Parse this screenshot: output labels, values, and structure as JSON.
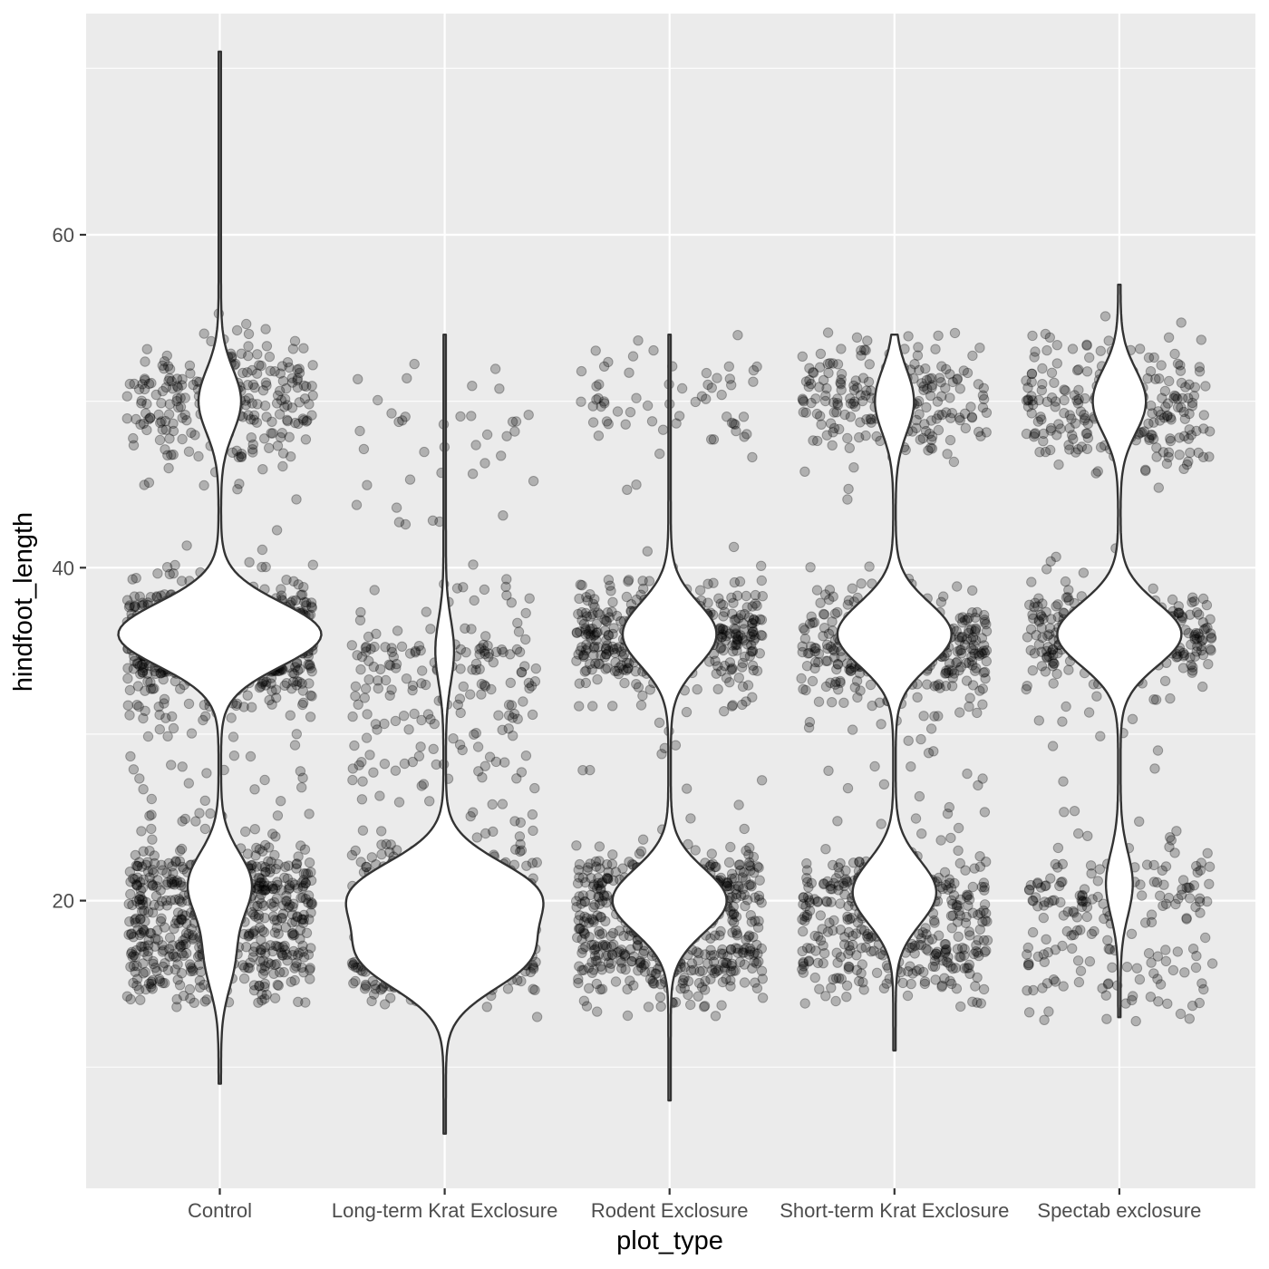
{
  "chart_data": {
    "type": "violin",
    "xlabel": "plot_type",
    "ylabel": "hindfoot_length",
    "categories": [
      "Control",
      "Long-term Krat Exclosure",
      "Rodent Exclosure",
      "Short-term Krat Exclosure",
      "Spectab exclosure"
    ],
    "ylim": [
      2,
      72
    ],
    "y_ticks": [
      20,
      40,
      60
    ],
    "y_tick_labels": [
      "20",
      "40",
      "60"
    ],
    "grid": true,
    "colors": {
      "panel": "#ebebeb",
      "grid": "#ffffff",
      "points": "#000000",
      "violin_fill": "#ffffff",
      "violin_stroke": "#333333"
    },
    "point_alpha": 0.25,
    "jitter": true,
    "violins": [
      {
        "category": "Control",
        "y_range": [
          9,
          71
        ],
        "modes": [
          {
            "y": 50,
            "density": 0.2
          },
          {
            "y": 36,
            "density": 1.0
          },
          {
            "y": 21,
            "density": 0.3
          },
          {
            "y": 16.5,
            "density": 0.13
          }
        ]
      },
      {
        "category": "Long-term Krat Exclosure",
        "y_range": [
          6,
          54
        ],
        "modes": [
          {
            "y": 35,
            "density": 0.08
          },
          {
            "y": 20.5,
            "density": 0.85
          },
          {
            "y": 16.5,
            "density": 0.75
          }
        ]
      },
      {
        "category": "Rodent Exclosure",
        "y_range": [
          8,
          54
        ],
        "modes": [
          {
            "y": 36,
            "density": 0.45
          },
          {
            "y": 20,
            "density": 0.55
          }
        ]
      },
      {
        "category": "Short-term Krat Exclosure",
        "y_range": [
          11,
          54
        ],
        "modes": [
          {
            "y": 50,
            "density": 0.18
          },
          {
            "y": 36,
            "density": 0.55
          },
          {
            "y": 20.5,
            "density": 0.4
          }
        ]
      },
      {
        "category": "Spectab exclosure",
        "y_range": [
          13,
          57
        ],
        "modes": [
          {
            "y": 50,
            "density": 0.25
          },
          {
            "y": 36,
            "density": 0.6
          },
          {
            "y": 21,
            "density": 0.12
          }
        ]
      }
    ],
    "points_distribution": [
      {
        "category": "Control",
        "clusters": [
          {
            "y": 50,
            "sd": 2.0,
            "weight": 0.16
          },
          {
            "y": 35.5,
            "sd": 1.8,
            "weight": 0.45
          },
          {
            "y": 20.5,
            "sd": 1.3,
            "weight": 0.22
          },
          {
            "y": 16.5,
            "sd": 1.2,
            "weight": 0.14
          },
          {
            "y": 27,
            "sd": 5,
            "weight": 0.03
          }
        ]
      },
      {
        "category": "Long-term Krat Exclosure",
        "clusters": [
          {
            "y": 34,
            "sd": 2.5,
            "weight": 0.18
          },
          {
            "y": 20.5,
            "sd": 1.2,
            "weight": 0.34
          },
          {
            "y": 16.5,
            "sd": 1.2,
            "weight": 0.34
          },
          {
            "y": 26,
            "sd": 3.5,
            "weight": 0.1
          },
          {
            "y": 48,
            "sd": 3,
            "weight": 0.04
          }
        ]
      },
      {
        "category": "Rodent Exclosure",
        "clusters": [
          {
            "y": 36,
            "sd": 1.5,
            "weight": 0.38
          },
          {
            "y": 20.5,
            "sd": 1.2,
            "weight": 0.27
          },
          {
            "y": 16.5,
            "sd": 1.2,
            "weight": 0.24
          },
          {
            "y": 50,
            "sd": 2,
            "weight": 0.07
          },
          {
            "y": 27,
            "sd": 5,
            "weight": 0.04
          }
        ]
      },
      {
        "category": "Short-term Krat Exclosure",
        "clusters": [
          {
            "y": 50,
            "sd": 2,
            "weight": 0.2
          },
          {
            "y": 35.5,
            "sd": 1.7,
            "weight": 0.37
          },
          {
            "y": 20.5,
            "sd": 1.2,
            "weight": 0.22
          },
          {
            "y": 16.5,
            "sd": 1.2,
            "weight": 0.17
          },
          {
            "y": 27,
            "sd": 5,
            "weight": 0.04
          }
        ]
      },
      {
        "category": "Spectab exclosure",
        "clusters": [
          {
            "y": 50,
            "sd": 2,
            "weight": 0.3
          },
          {
            "y": 36,
            "sd": 1.5,
            "weight": 0.44
          },
          {
            "y": 20.5,
            "sd": 1.5,
            "weight": 0.13
          },
          {
            "y": 15.5,
            "sd": 1.5,
            "weight": 0.1
          },
          {
            "y": 27,
            "sd": 5,
            "weight": 0.03
          }
        ]
      }
    ]
  }
}
